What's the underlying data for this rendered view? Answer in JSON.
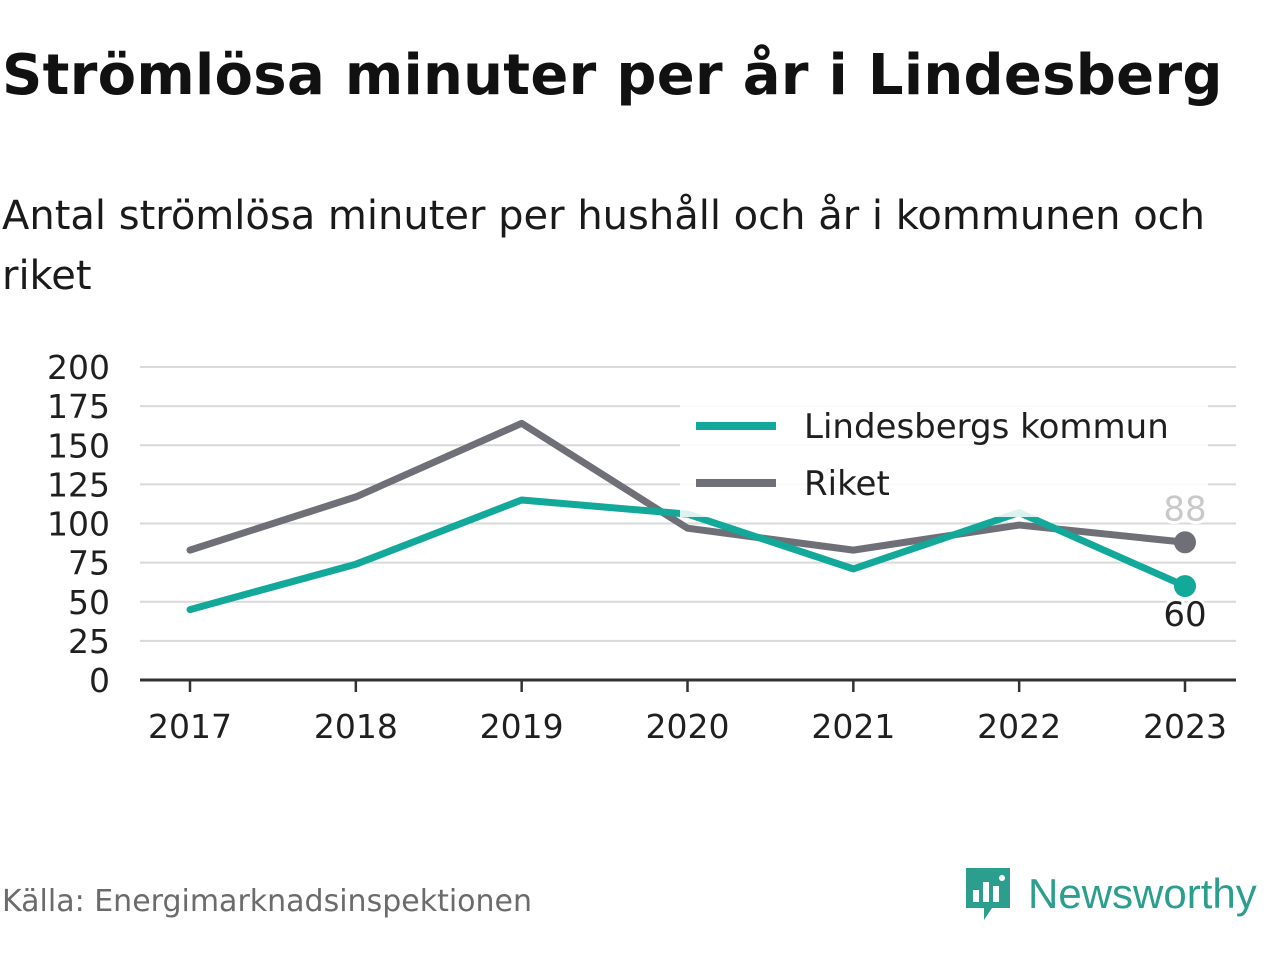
{
  "title": "Strömlösa minuter per år i Lindesberg",
  "subtitle": "Antal strömlösa minuter per hushåll och år i kommunen och riket",
  "source": "Källa: Energimarknadsinspektionen",
  "brand": {
    "name": "Newsworthy",
    "icon": "newsworthy-logo-icon",
    "color": "#2b9e8e"
  },
  "chart_data": {
    "type": "line",
    "title": "Strömlösa minuter per år i Lindesberg",
    "subtitle": "Antal strömlösa minuter per hushåll och år i kommunen och riket",
    "x": [
      "2017",
      "2018",
      "2019",
      "2020",
      "2021",
      "2022",
      "2023"
    ],
    "ylim": [
      0,
      200
    ],
    "yticks": [
      "0",
      "25",
      "50",
      "75",
      "100",
      "125",
      "150",
      "175",
      "200"
    ],
    "grid": true,
    "legend_position": "top-right",
    "series": [
      {
        "name": "Lindesbergs kommun",
        "color": "#12a89a",
        "values": [
          45,
          74,
          115,
          106,
          71,
          107,
          60
        ],
        "end_label": "60"
      },
      {
        "name": "Riket",
        "color": "#6f6f78",
        "values": [
          83,
          117,
          164,
          97,
          83,
          99,
          88
        ],
        "end_label": "88"
      }
    ]
  }
}
